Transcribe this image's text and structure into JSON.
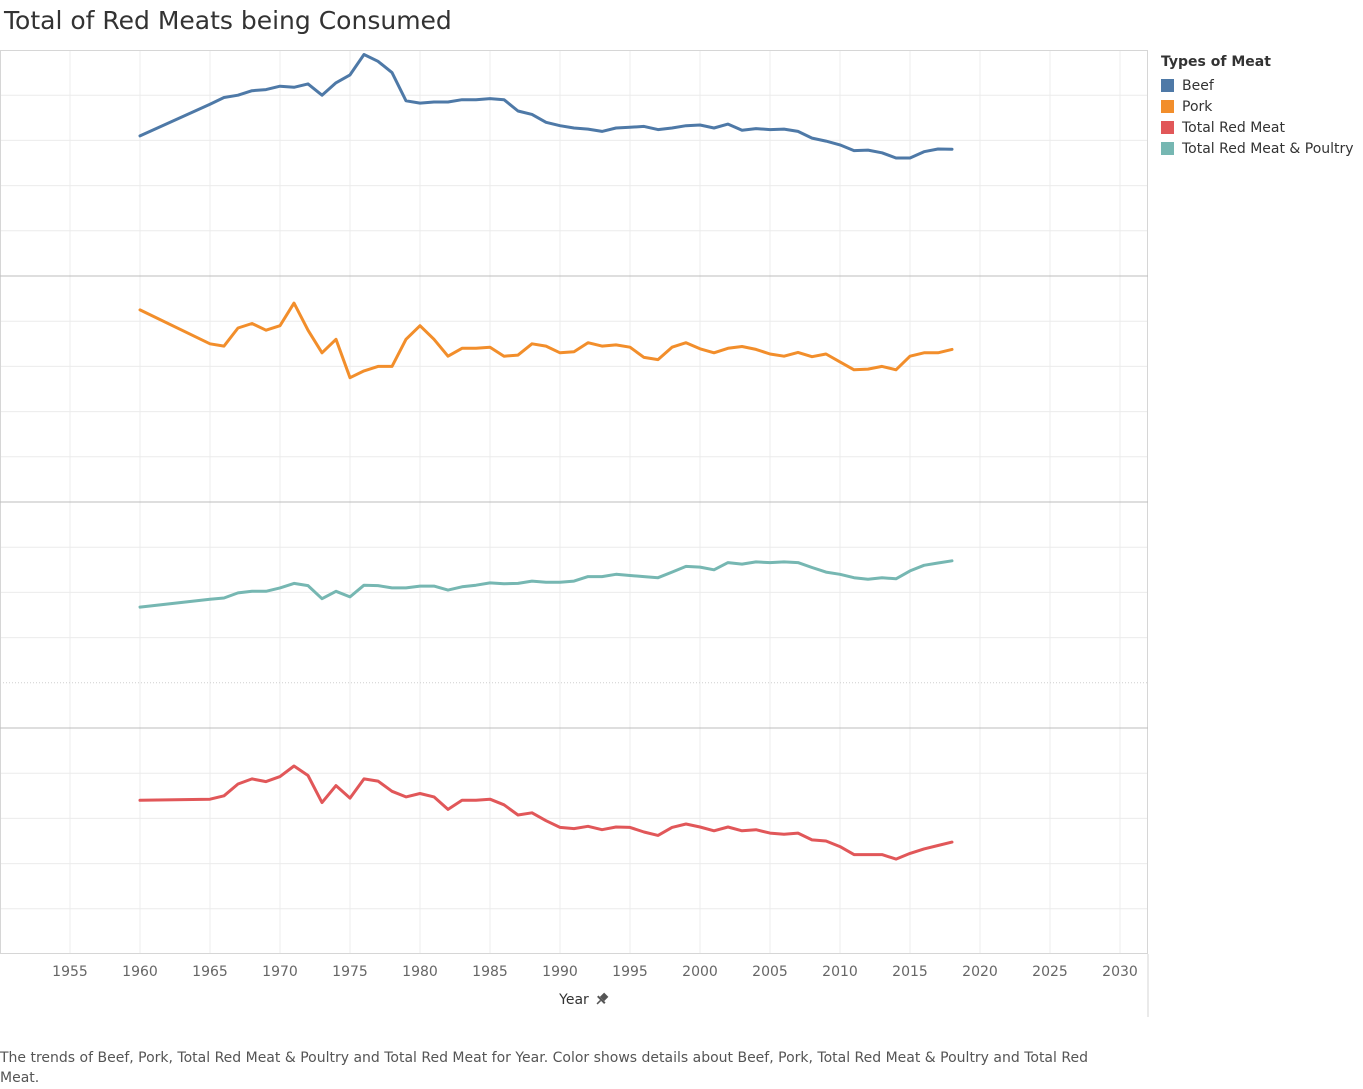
{
  "chart_data": {
    "type": "line",
    "title": "Total of Red Meats being Consumed",
    "xlabel": "Year",
    "xlim": [
      1950,
      2032
    ],
    "x_ticks": [
      1955,
      1960,
      1965,
      1970,
      1975,
      1980,
      1985,
      1990,
      1995,
      2000,
      2005,
      2010,
      2015,
      2020,
      2025,
      2030
    ],
    "grid": true,
    "legend_title": "Types of Meat",
    "legend_position": "right",
    "x": [
      1960,
      1965,
      1966,
      1967,
      1968,
      1969,
      1970,
      1971,
      1972,
      1973,
      1974,
      1975,
      1976,
      1977,
      1978,
      1979,
      1980,
      1981,
      1982,
      1983,
      1984,
      1985,
      1986,
      1987,
      1988,
      1989,
      1990,
      1991,
      1992,
      1993,
      1994,
      1995,
      1996,
      1997,
      1998,
      1999,
      2000,
      2001,
      2002,
      2003,
      2004,
      2005,
      2006,
      2007,
      2008,
      2009,
      2010,
      2011,
      2012,
      2013,
      2014,
      2015,
      2016,
      2017,
      2018
    ],
    "series": [
      {
        "name": "Beef",
        "color": "#4e79a7",
        "values": [
          0.62,
          0.76,
          0.79,
          0.8,
          0.82,
          0.825,
          0.84,
          0.835,
          0.85,
          0.8,
          0.855,
          0.89,
          0.98,
          0.95,
          0.9,
          0.775,
          0.765,
          0.77,
          0.77,
          0.78,
          0.78,
          0.785,
          0.78,
          0.73,
          0.715,
          0.68,
          0.665,
          0.655,
          0.65,
          0.64,
          0.655,
          0.658,
          0.662,
          0.648,
          0.655,
          0.665,
          0.668,
          0.655,
          0.672,
          0.645,
          0.652,
          0.648,
          0.65,
          0.64,
          0.61,
          0.597,
          0.58,
          0.555,
          0.557,
          0.545,
          0.522,
          0.522,
          0.55,
          0.562,
          0.561
        ]
      },
      {
        "name": "Pork",
        "color": "#f28e2b",
        "values": [
          0.85,
          0.7,
          0.69,
          0.77,
          0.79,
          0.76,
          0.78,
          0.88,
          0.76,
          0.66,
          0.72,
          0.55,
          0.58,
          0.6,
          0.6,
          0.72,
          0.78,
          0.72,
          0.645,
          0.68,
          0.68,
          0.685,
          0.645,
          0.65,
          0.7,
          0.69,
          0.66,
          0.665,
          0.705,
          0.69,
          0.695,
          0.685,
          0.64,
          0.63,
          0.685,
          0.705,
          0.678,
          0.66,
          0.68,
          0.688,
          0.675,
          0.655,
          0.645,
          0.662,
          0.643,
          0.655,
          0.62,
          0.585,
          0.588,
          0.6,
          0.585,
          0.645,
          0.66,
          0.66,
          0.675
        ]
      },
      {
        "name": "Total Red Meat & Poultry",
        "color": "#76b7b2",
        "values": [
          0.535,
          0.57,
          0.575,
          0.598,
          0.605,
          0.605,
          0.62,
          0.64,
          0.63,
          0.572,
          0.605,
          0.58,
          0.632,
          0.63,
          0.62,
          0.62,
          0.628,
          0.628,
          0.61,
          0.625,
          0.632,
          0.642,
          0.638,
          0.64,
          0.65,
          0.645,
          0.645,
          0.65,
          0.67,
          0.67,
          0.68,
          0.675,
          0.67,
          0.665,
          0.69,
          0.715,
          0.712,
          0.7,
          0.732,
          0.725,
          0.735,
          0.732,
          0.735,
          0.732,
          0.71,
          0.69,
          0.68,
          0.665,
          0.658,
          0.665,
          0.66,
          0.695,
          0.72,
          0.73,
          0.74
        ]
      },
      {
        "name": "Total Red Meat",
        "color": "#e15759",
        "values": [
          0.68,
          0.685,
          0.7,
          0.752,
          0.775,
          0.763,
          0.785,
          0.832,
          0.79,
          0.67,
          0.745,
          0.69,
          0.775,
          0.765,
          0.72,
          0.695,
          0.71,
          0.695,
          0.64,
          0.68,
          0.68,
          0.685,
          0.66,
          0.615,
          0.625,
          0.59,
          0.56,
          0.555,
          0.565,
          0.55,
          0.562,
          0.56,
          0.54,
          0.525,
          0.56,
          0.575,
          0.562,
          0.545,
          0.562,
          0.545,
          0.55,
          0.535,
          0.53,
          0.535,
          0.505,
          0.5,
          0.475,
          0.44,
          0.44,
          0.44,
          0.42,
          0.445,
          0.465,
          0.48,
          0.495
        ]
      }
    ]
  },
  "caption": "The trends of Beef, Pork, Total Red Meat & Poultry and Total Red Meat for Year.  Color shows details about Beef, Pork, Total Red Meat & Poultry and Total Red Meat."
}
